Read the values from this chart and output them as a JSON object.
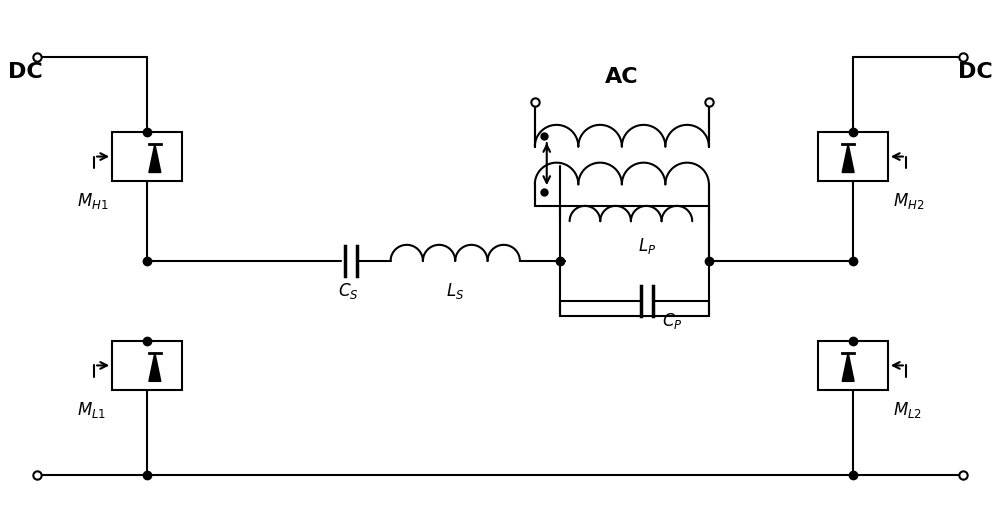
{
  "bg_color": "#ffffff",
  "line_color": "#000000",
  "line_width": 1.5,
  "dot_size": 6,
  "figsize": [
    10.0,
    5.21
  ],
  "dpi": 100,
  "labels": {
    "DC_left": "DC",
    "DC_right": "DC",
    "AC": "AC",
    "MH1": "M_{H1}",
    "ML1": "M_{L1}",
    "MH2": "M_{H2}",
    "ML2": "M_{L2}",
    "CS": "C_S",
    "LS": "L_S",
    "LP": "L_P",
    "CP": "C_P"
  }
}
